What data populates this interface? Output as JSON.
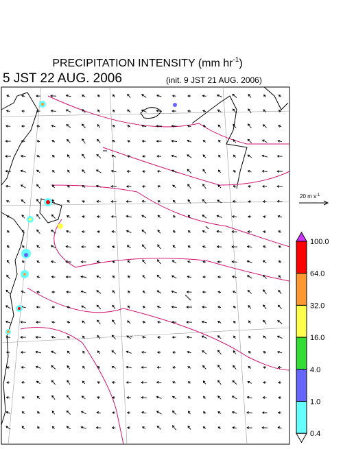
{
  "header": {
    "title": "PRECIPITATION INTENSITY (mm hr",
    "title_exponent": "-1",
    "title_end": ")",
    "valid_time": "5 JST 22 AUG. 2006",
    "init_time": "(init. 9 JST 21 AUG. 2006)"
  },
  "wind_scale": {
    "label": "20 m s",
    "exponent": "-1"
  },
  "colorbar": {
    "levels": [
      "100.0",
      "64.0",
      "32.0",
      "16.0",
      "4.0",
      "1.0",
      "0.4"
    ],
    "colors": [
      "#ff0000",
      "#ff9933",
      "#ffff4d",
      "#33dd33",
      "#6666ff",
      "#66ffff"
    ],
    "over_color": "#cc33ff",
    "under_color": "#ffffff"
  }
}
